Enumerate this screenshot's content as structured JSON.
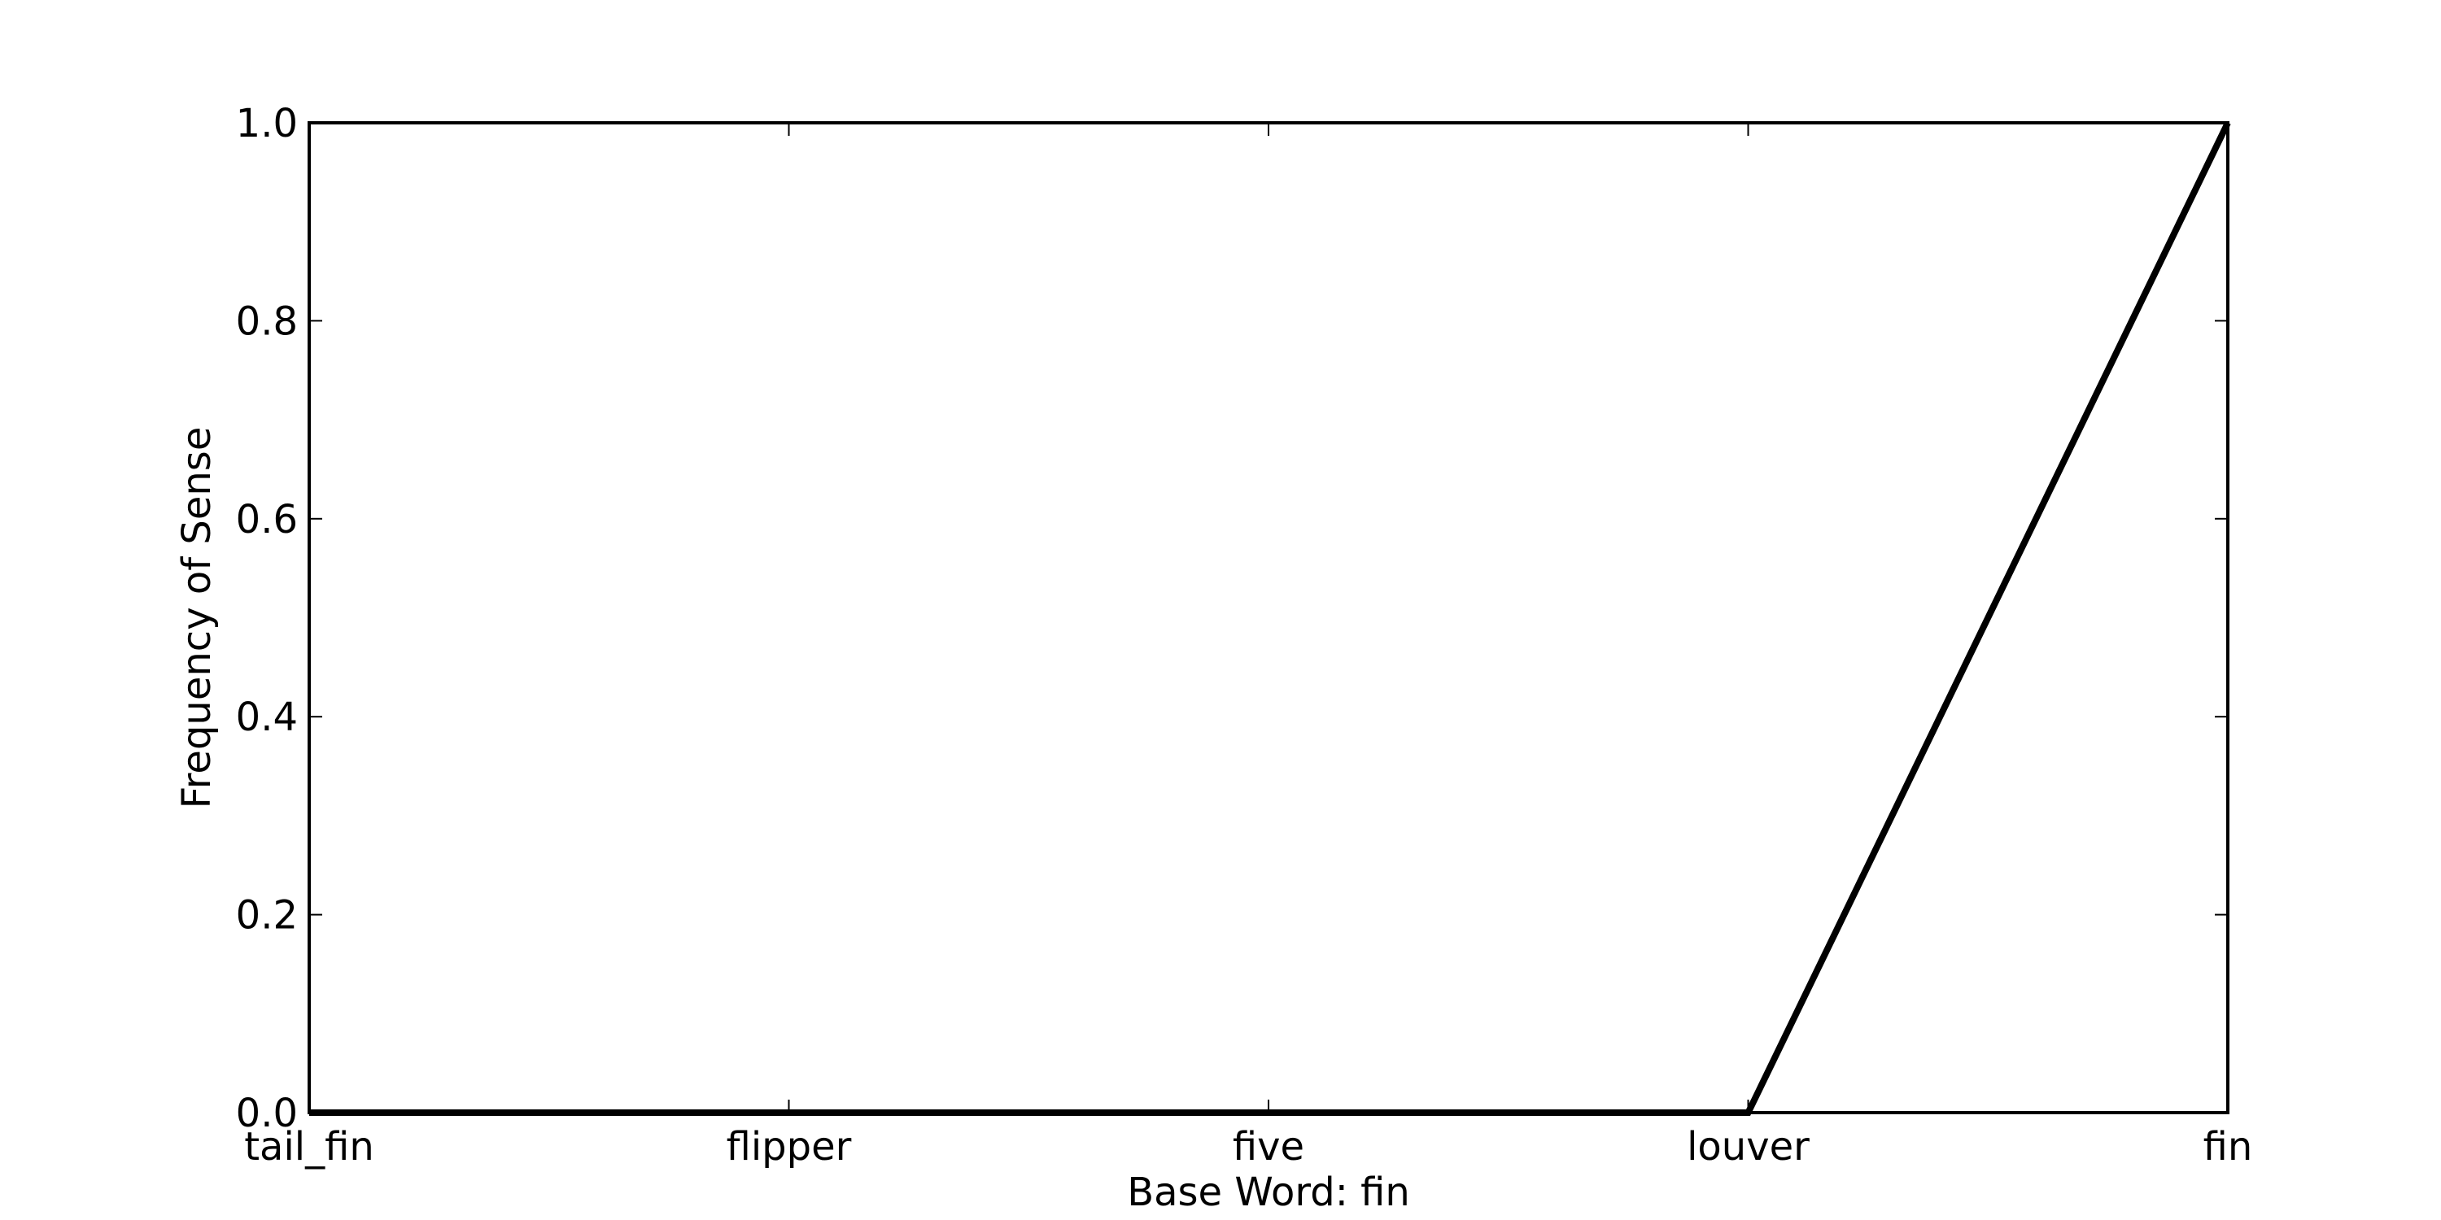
{
  "chart_data": {
    "type": "line",
    "categories": [
      "tail_fin",
      "flipper",
      "five",
      "louver",
      "fin"
    ],
    "series": [
      {
        "values": [
          0.0,
          0.0,
          0.0,
          0.0,
          1.0
        ],
        "color": "#000000"
      }
    ],
    "xlabel": "Base Word: fin",
    "ylabel": "Frequency of Sense",
    "ylim": [
      0.0,
      1.0
    ],
    "yticks": [
      "0.0",
      "0.2",
      "0.4",
      "0.6",
      "0.8",
      "1.0"
    ],
    "grid": false
  }
}
